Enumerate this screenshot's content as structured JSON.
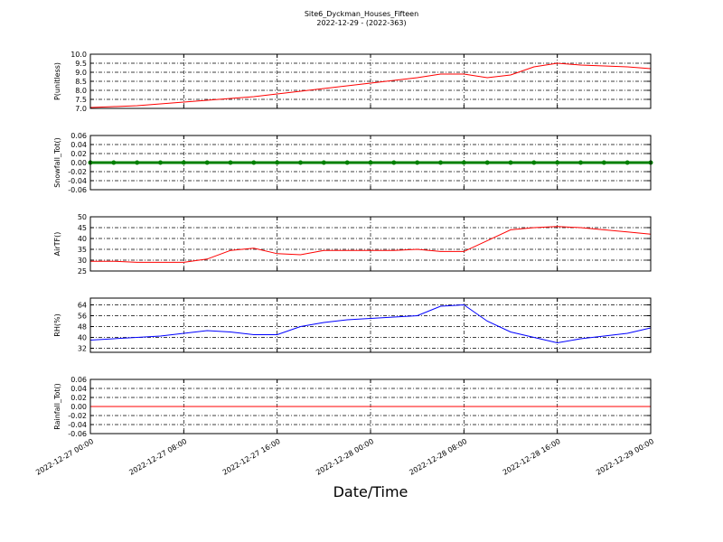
{
  "title": "Site6_Dyckman_Houses_Fifteen",
  "subtitle": "2022-12-29 - (2022-363)",
  "xlabel": "Date/Time",
  "chart_data": [
    {
      "type": "line",
      "ylabel": "P(unitless)",
      "color": "#ff0000",
      "grid": true,
      "xlim": [
        "2022-12-27 00:00",
        "2022-12-29 00:00"
      ],
      "x": [
        "2022-12-27 00:00",
        "2022-12-27 02:00",
        "2022-12-27 04:00",
        "2022-12-27 06:00",
        "2022-12-27 08:00",
        "2022-12-27 10:00",
        "2022-12-27 12:00",
        "2022-12-27 14:00",
        "2022-12-27 16:00",
        "2022-12-27 18:00",
        "2022-12-27 20:00",
        "2022-12-27 22:00",
        "2022-12-28 00:00",
        "2022-12-28 02:00",
        "2022-12-28 04:00",
        "2022-12-28 06:00",
        "2022-12-28 08:00",
        "2022-12-28 10:00",
        "2022-12-28 12:00",
        "2022-12-28 14:00",
        "2022-12-28 16:00",
        "2022-12-28 18:00",
        "2022-12-28 20:00",
        "2022-12-28 22:00",
        "2022-12-29 00:00"
      ],
      "values": [
        7.05,
        7.1,
        7.15,
        7.25,
        7.35,
        7.45,
        7.55,
        7.65,
        7.8,
        7.95,
        8.1,
        8.25,
        8.4,
        8.55,
        8.7,
        8.9,
        8.9,
        8.7,
        8.85,
        9.3,
        9.5,
        9.4,
        9.35,
        9.3,
        9.2
      ],
      "ylim": [
        7.0,
        10.0
      ],
      "yticks": [
        {
          "value": 7.0,
          "label": "7.0"
        },
        7.5,
        {
          "value": 8.0,
          "label": "8.0"
        },
        8.5,
        {
          "value": 9.0,
          "label": "9.0"
        },
        9.5,
        {
          "value": 10.0,
          "label": "10.0"
        }
      ]
    },
    {
      "type": "line",
      "ylabel": "Snowfall_Tot()",
      "color": "#008000",
      "markers": true,
      "grid": true,
      "xlim": [
        "2022-12-27 00:00",
        "2022-12-29 00:00"
      ],
      "x": [
        "2022-12-27 00:00",
        "2022-12-27 02:00",
        "2022-12-27 04:00",
        "2022-12-27 06:00",
        "2022-12-27 08:00",
        "2022-12-27 10:00",
        "2022-12-27 12:00",
        "2022-12-27 14:00",
        "2022-12-27 16:00",
        "2022-12-27 18:00",
        "2022-12-27 20:00",
        "2022-12-27 22:00",
        "2022-12-28 00:00",
        "2022-12-28 02:00",
        "2022-12-28 04:00",
        "2022-12-28 06:00",
        "2022-12-28 08:00",
        "2022-12-28 10:00",
        "2022-12-28 12:00",
        "2022-12-28 14:00",
        "2022-12-28 16:00",
        "2022-12-28 18:00",
        "2022-12-28 20:00",
        "2022-12-28 22:00",
        "2022-12-29 00:00"
      ],
      "values": [
        0,
        0,
        0,
        0,
        0,
        0,
        0,
        0,
        0,
        0,
        0,
        0,
        0,
        0,
        0,
        0,
        0,
        0,
        0,
        0,
        0,
        0,
        0,
        0,
        0
      ],
      "ylim": [
        -0.06,
        0.06
      ],
      "yticks": [
        -0.06,
        -0.04,
        -0.02,
        {
          "value": 0,
          "label": "0.00"
        },
        0.02,
        0.04,
        0.06
      ]
    },
    {
      "type": "line",
      "ylabel": "AirTF()",
      "color": "#ff0000",
      "grid": true,
      "xlim": [
        "2022-12-27 00:00",
        "2022-12-29 00:00"
      ],
      "x": [
        "2022-12-27 00:00",
        "2022-12-27 02:00",
        "2022-12-27 04:00",
        "2022-12-27 06:00",
        "2022-12-27 08:00",
        "2022-12-27 10:00",
        "2022-12-27 12:00",
        "2022-12-27 14:00",
        "2022-12-27 16:00",
        "2022-12-27 18:00",
        "2022-12-27 20:00",
        "2022-12-27 22:00",
        "2022-12-28 00:00",
        "2022-12-28 02:00",
        "2022-12-28 04:00",
        "2022-12-28 06:00",
        "2022-12-28 08:00",
        "2022-12-28 10:00",
        "2022-12-28 12:00",
        "2022-12-28 14:00",
        "2022-12-28 16:00",
        "2022-12-28 18:00",
        "2022-12-28 20:00",
        "2022-12-28 22:00",
        "2022-12-29 00:00"
      ],
      "values": [
        29.5,
        29.5,
        29,
        29,
        29,
        30.5,
        34.5,
        35.5,
        33,
        32.5,
        34.5,
        34.5,
        34.5,
        34.5,
        35,
        34,
        34,
        39,
        44,
        45,
        45.5,
        45,
        44,
        43,
        42
      ],
      "ylim": [
        25,
        50
      ],
      "yticks": [
        25,
        30,
        35,
        40,
        45,
        50
      ]
    },
    {
      "type": "line",
      "ylabel": "RH(%)",
      "color": "#0000ff",
      "grid": true,
      "xlim": [
        "2022-12-27 00:00",
        "2022-12-29 00:00"
      ],
      "x": [
        "2022-12-27 00:00",
        "2022-12-27 02:00",
        "2022-12-27 04:00",
        "2022-12-27 06:00",
        "2022-12-27 08:00",
        "2022-12-27 10:00",
        "2022-12-27 12:00",
        "2022-12-27 14:00",
        "2022-12-27 16:00",
        "2022-12-27 18:00",
        "2022-12-27 20:00",
        "2022-12-27 22:00",
        "2022-12-28 00:00",
        "2022-12-28 02:00",
        "2022-12-28 04:00",
        "2022-12-28 06:00",
        "2022-12-28 08:00",
        "2022-12-28 10:00",
        "2022-12-28 12:00",
        "2022-12-28 14:00",
        "2022-12-28 16:00",
        "2022-12-28 18:00",
        "2022-12-28 20:00",
        "2022-12-28 22:00",
        "2022-12-29 00:00"
      ],
      "values": [
        38,
        39,
        40,
        41,
        43,
        45,
        44,
        42,
        42,
        48,
        51,
        53,
        54,
        55,
        56,
        63,
        64,
        52,
        44,
        40,
        36,
        39,
        41,
        43,
        47
      ],
      "ylim": [
        29,
        69
      ],
      "yticks": [
        32,
        40,
        48,
        56,
        64
      ]
    },
    {
      "type": "line",
      "ylabel": "Rainfall_Tot()",
      "color": "#ff0000",
      "grid": true,
      "xlim": [
        "2022-12-27 00:00",
        "2022-12-29 00:00"
      ],
      "x": [
        "2022-12-27 00:00",
        "2022-12-27 02:00",
        "2022-12-27 04:00",
        "2022-12-27 06:00",
        "2022-12-27 08:00",
        "2022-12-27 10:00",
        "2022-12-27 12:00",
        "2022-12-27 14:00",
        "2022-12-27 16:00",
        "2022-12-27 18:00",
        "2022-12-27 20:00",
        "2022-12-27 22:00",
        "2022-12-28 00:00",
        "2022-12-28 02:00",
        "2022-12-28 04:00",
        "2022-12-28 06:00",
        "2022-12-28 08:00",
        "2022-12-28 10:00",
        "2022-12-28 12:00",
        "2022-12-28 14:00",
        "2022-12-28 16:00",
        "2022-12-28 18:00",
        "2022-12-28 20:00",
        "2022-12-28 22:00",
        "2022-12-29 00:00"
      ],
      "values": [
        0,
        0,
        0,
        0,
        0,
        0,
        0,
        0,
        0,
        0,
        0,
        0,
        0,
        0,
        0,
        0,
        0,
        0,
        0,
        0,
        0,
        0,
        0,
        0,
        0
      ],
      "ylim": [
        -0.06,
        0.06
      ],
      "yticks": [
        -0.06,
        -0.04,
        -0.02,
        {
          "value": 0,
          "label": "0.00"
        },
        0.02,
        0.04,
        0.06
      ],
      "xticks": [
        "2022-12-27 00:00",
        "2022-12-27 08:00",
        "2022-12-27 16:00",
        "2022-12-28 00:00",
        "2022-12-28 08:00",
        "2022-12-28 16:00",
        "2022-12-29 00:00"
      ]
    }
  ]
}
